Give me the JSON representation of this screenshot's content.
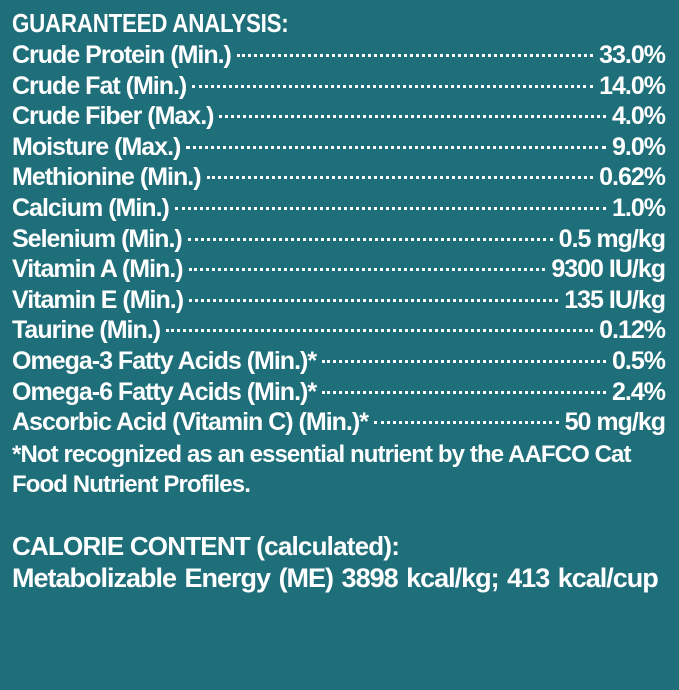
{
  "analysis": {
    "heading": "GUARANTEED ANALYSIS:",
    "rows": [
      {
        "label": "Crude Protein (Min.)",
        "value": "33.0%"
      },
      {
        "label": "Crude Fat (Min.)",
        "value": "14.0%"
      },
      {
        "label": "Crude Fiber (Max.)",
        "value": "4.0%"
      },
      {
        "label": "Moisture (Max.)",
        "value": "9.0%"
      },
      {
        "label": "Methionine (Min.)",
        "value": "0.62%"
      },
      {
        "label": "Calcium (Min.)",
        "value": "1.0%"
      },
      {
        "label": "Selenium (Min.)",
        "value": "0.5 mg/kg"
      },
      {
        "label": "Vitamin A (Min.)",
        "value": "9300 IU/kg"
      },
      {
        "label": "Vitamin E (Min.)",
        "value": "135 IU/kg"
      },
      {
        "label": "Taurine (Min.)",
        "value": "0.12%"
      },
      {
        "label": "Omega-3 Fatty Acids (Min.)*",
        "value": "0.5%"
      },
      {
        "label": "Omega-6 Fatty Acids (Min.)*",
        "value": "2.4%"
      },
      {
        "label": "Ascorbic Acid (Vitamin C) (Min.)*",
        "value": "50 mg/kg"
      }
    ],
    "footnote": "*Not recognized as an essential nutrient by the AAFCO Cat Food Nutrient Profiles."
  },
  "calorie": {
    "heading": "CALORIE CONTENT (calculated):",
    "line": "Metabolizable Energy (ME) 3898 kcal/kg;  413 kcal/cup"
  },
  "colors": {
    "background": "#1f6f7a",
    "text": "#ffffff"
  }
}
